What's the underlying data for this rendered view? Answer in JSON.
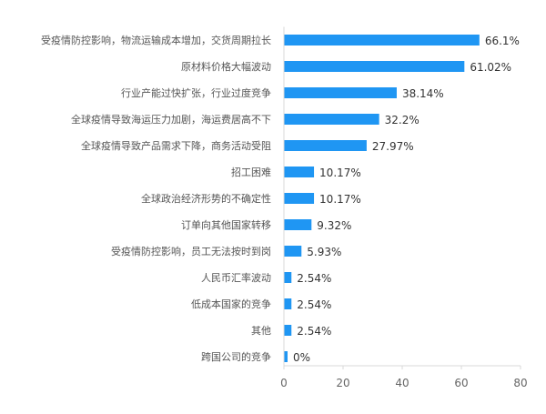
{
  "chart_data": {
    "type": "bar",
    "orientation": "horizontal",
    "categories": [
      "受疫情防控影响，物流运输成本增加，交货周期拉长",
      "原材料价格大幅波动",
      "行业产能过快扩张，行业过度竞争",
      "全球疫情导致海运压力加剧，海运费居高不下",
      "全球疫情导致产品需求下降，商务活动受阻",
      "招工困难",
      "全球政治经济形势的不确定性",
      "订单向其他国家转移",
      "受疫情防控影响，员工无法按时到岗",
      "人民币汇率波动",
      "低成本国家的竞争",
      "其他",
      "跨国公司的竞争"
    ],
    "values": [
      66.1,
      61.02,
      38.14,
      32.2,
      27.97,
      10.17,
      10.17,
      9.32,
      5.93,
      2.54,
      2.54,
      2.54,
      0
    ],
    "data_labels": [
      "66.1%",
      "61.02%",
      "38.14%",
      "32.2%",
      "27.97%",
      "10.17%",
      "10.17%",
      "9.32%",
      "5.93%",
      "2.54%",
      "2.54%",
      "2.54%",
      "0%"
    ],
    "xlim": [
      0,
      80
    ],
    "x_ticks": [
      "0",
      "20",
      "40",
      "60",
      "80"
    ],
    "title": "",
    "xlabel": "",
    "ylabel": "",
    "grid": false,
    "legend": "none",
    "colors": {
      "bar": "#1f96f3",
      "axis": "#d8d8d8",
      "label_text": "#555555",
      "value_text": "#333333",
      "tick_text": "#666666"
    }
  }
}
